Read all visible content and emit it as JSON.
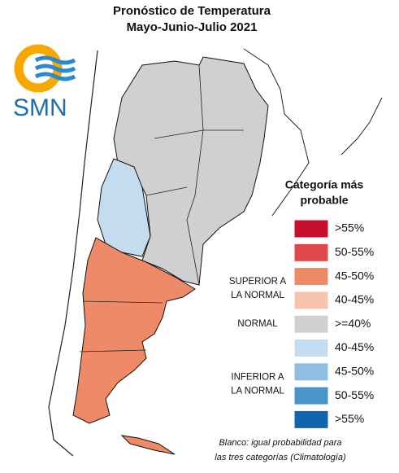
{
  "header": {
    "title": "Pronóstico de Temperatura",
    "subtitle": "Mayo-Junio-Julio 2021"
  },
  "logo": {
    "text": "SMN"
  },
  "legend": {
    "title": [
      "Categoría más",
      "probable"
    ],
    "items": [
      {
        "label": ">55%",
        "color": "#c8102e"
      },
      {
        "label": "50-55%",
        "color": "#e0474c"
      },
      {
        "label": "45-50%",
        "color": "#ef8a68"
      },
      {
        "label": "40-45%",
        "color": "#f7c4ad"
      },
      {
        "label": ">=40%",
        "color": "#d0d0d0"
      },
      {
        "label": "40-45%",
        "color": "#c3dcef"
      },
      {
        "label": "45-50%",
        "color": "#8fbfe0"
      },
      {
        "label": "50-55%",
        "color": "#4a93cb"
      },
      {
        "label": ">55%",
        "color": "#1065ad"
      }
    ],
    "groups": [
      [
        "SUPERIOR A",
        "LA NORMAL"
      ],
      [
        "NORMAL"
      ],
      [
        "INFERIOR A",
        "LA NORMAL"
      ]
    ]
  },
  "footnote": [
    "Blanco: igual probabilidad para",
    "las tres categorías (Climatología)"
  ]
}
